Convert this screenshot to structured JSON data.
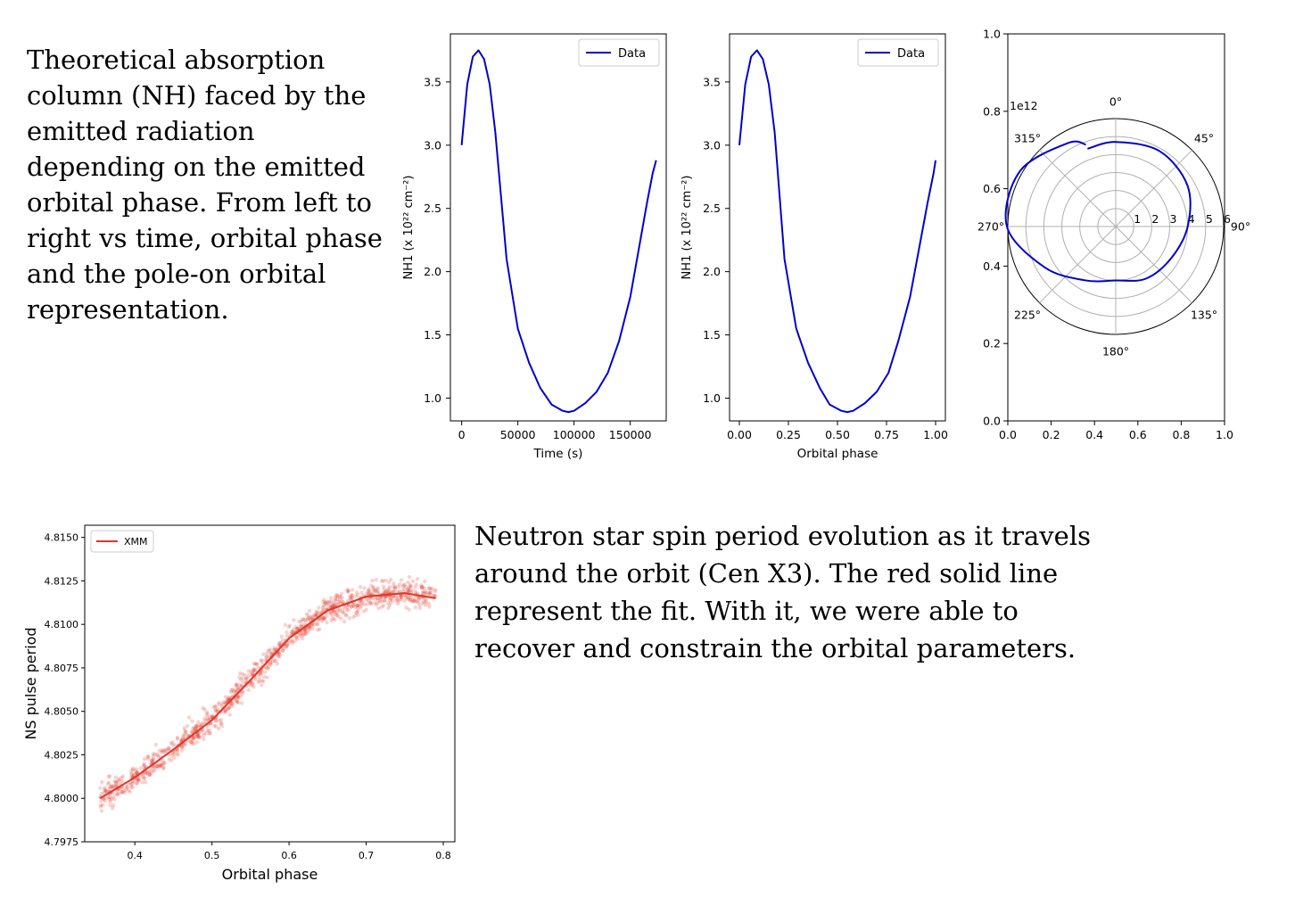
{
  "captions": {
    "top": "Theoretical absorption column (NH) faced by the emitted radiation depending on the emitted orbital phase. From left to right vs time, orbital phase and the pole-on orbital representation.",
    "bottom": "Neutron star spin period evolution as it travels around the orbit (Cen X3). The red solid line represent the fit. With it, we were able to recover and constrain the orbital parameters."
  },
  "colors": {
    "data_line": "#0000cc",
    "xmm": "#e03528",
    "grid": "#b0b0b0"
  },
  "chart_data": [
    {
      "type": "line",
      "xlabel": "Time (s)",
      "ylabel": "NH1 (x 10²² cm⁻²)",
      "xlim": [
        -10000,
        182000
      ],
      "ylim": [
        0.82,
        3.88
      ],
      "xticks": [
        0,
        50000,
        100000,
        150000
      ],
      "xtick_labels": [
        "0",
        "50000",
        "100000",
        "150000"
      ],
      "yticks": [
        1.0,
        1.5,
        2.0,
        2.5,
        3.0,
        3.5
      ],
      "ytick_labels": [
        "1.0",
        "1.5",
        "2.0",
        "2.5",
        "3.0",
        "3.5"
      ],
      "legend": {
        "entries": [
          "Data"
        ],
        "placement": "upper right"
      },
      "series": [
        {
          "name": "Data",
          "x": [
            0,
            5000,
            10000,
            15000,
            20000,
            25000,
            30000,
            40000,
            50000,
            60000,
            70000,
            80000,
            90000,
            95000,
            100000,
            110000,
            120000,
            130000,
            140000,
            150000,
            160000,
            165000,
            170000,
            173000
          ],
          "y": [
            3.0,
            3.48,
            3.7,
            3.75,
            3.68,
            3.48,
            3.1,
            2.1,
            1.55,
            1.28,
            1.08,
            0.95,
            0.9,
            0.89,
            0.9,
            0.96,
            1.05,
            1.2,
            1.45,
            1.8,
            2.3,
            2.55,
            2.78,
            2.88
          ]
        }
      ]
    },
    {
      "type": "line",
      "xlabel": "Orbital phase",
      "ylabel": "NH1 (x 10²² cm⁻²)",
      "xlim": [
        -0.05,
        1.05
      ],
      "ylim": [
        0.82,
        3.88
      ],
      "xticks": [
        0.0,
        0.25,
        0.5,
        0.75,
        1.0
      ],
      "xtick_labels": [
        "0.00",
        "0.25",
        "0.50",
        "0.75",
        "1.00"
      ],
      "yticks": [
        1.0,
        1.5,
        2.0,
        2.5,
        3.0,
        3.5
      ],
      "ytick_labels": [
        "1.0",
        "1.5",
        "2.0",
        "2.5",
        "3.0",
        "3.5"
      ],
      "legend": {
        "entries": [
          "Data"
        ],
        "placement": "upper right"
      },
      "series": [
        {
          "name": "Data",
          "x": [
            0.0,
            0.03,
            0.06,
            0.09,
            0.12,
            0.15,
            0.18,
            0.23,
            0.29,
            0.35,
            0.41,
            0.46,
            0.52,
            0.55,
            0.58,
            0.64,
            0.7,
            0.76,
            0.81,
            0.87,
            0.93,
            0.96,
            0.99,
            1.0
          ],
          "y": [
            3.0,
            3.48,
            3.7,
            3.75,
            3.68,
            3.48,
            3.1,
            2.1,
            1.55,
            1.28,
            1.08,
            0.95,
            0.9,
            0.89,
            0.9,
            0.96,
            1.05,
            1.2,
            1.45,
            1.8,
            2.3,
            2.55,
            2.78,
            2.88
          ]
        }
      ]
    },
    {
      "type": "polar",
      "xticks": [
        0.0,
        0.2,
        0.4,
        0.6,
        0.8,
        1.0
      ],
      "xtick_labels": [
        "0.0",
        "0.2",
        "0.4",
        "0.6",
        "0.8",
        "1.0"
      ],
      "yticks": [
        0.0,
        0.2,
        0.4,
        0.6,
        0.8,
        1.0
      ],
      "ytick_labels": [
        "0.0",
        "0.2",
        "0.4",
        "0.6",
        "0.8",
        "1.0"
      ],
      "offset_text": "1e12",
      "radial_ticks": [
        1,
        2,
        3,
        4,
        5,
        6
      ],
      "radial_tick_labels": [
        "1",
        "2",
        "3",
        "4",
        "5",
        "6"
      ],
      "rmax": 6,
      "angle_labels": [
        "0°",
        "45°",
        "90°",
        "135°",
        "180°",
        "225°",
        "270°",
        "315°"
      ],
      "series": [
        {
          "angle_deg": [
            -20,
            0,
            30,
            60,
            90,
            120,
            150,
            180,
            210,
            240,
            270,
            300,
            330,
            340
          ],
          "r": [
            4.6,
            4.7,
            4.85,
            4.6,
            4.0,
            3.55,
            3.35,
            3.0,
            3.45,
            4.55,
            6.05,
            6.15,
            5.35,
            4.85
          ]
        }
      ]
    },
    {
      "type": "scatter",
      "xlabel": "Orbital phase",
      "ylabel": "NS pulse period",
      "xlim": [
        0.335,
        0.815
      ],
      "ylim": [
        4.7975,
        4.8157
      ],
      "xticks": [
        0.4,
        0.5,
        0.6,
        0.7,
        0.8
      ],
      "xtick_labels": [
        "0.4",
        "0.5",
        "0.6",
        "0.7",
        "0.8"
      ],
      "yticks": [
        4.7975,
        4.8,
        4.8025,
        4.805,
        4.8075,
        4.81,
        4.8125,
        4.815
      ],
      "ytick_labels": [
        "4.7975",
        "4.8000",
        "4.8025",
        "4.8050",
        "4.8075",
        "4.8100",
        "4.8125",
        "4.8150"
      ],
      "legend": {
        "entries": [
          "XMM"
        ],
        "placement": "upper left"
      },
      "scatter_spread": 0.0013,
      "fit": {
        "x": [
          0.355,
          0.4,
          0.45,
          0.5,
          0.55,
          0.6,
          0.65,
          0.7,
          0.75,
          0.79
        ],
        "y": [
          4.8,
          4.8012,
          4.8028,
          4.8045,
          4.8068,
          4.8092,
          4.8108,
          4.8116,
          4.8118,
          4.8115
        ]
      }
    }
  ]
}
